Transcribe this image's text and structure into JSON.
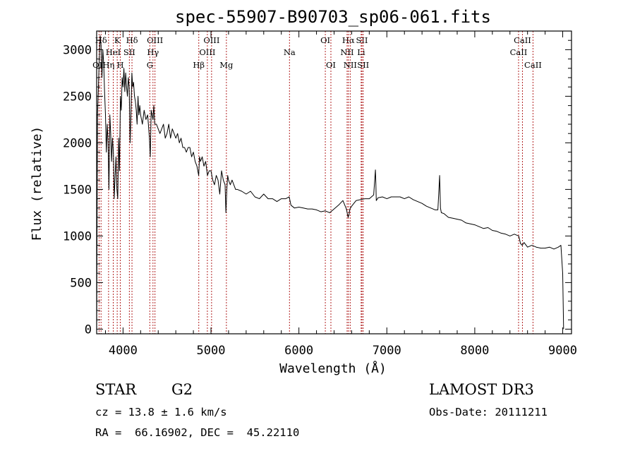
{
  "chart_data": {
    "type": "line",
    "title": "spec-55907-B90703_sp06-061.fits",
    "xlabel": "Wavelength (Å)",
    "ylabel": "Flux (relative)",
    "xlim": [
      3700,
      9100
    ],
    "ylim": [
      -50,
      3200
    ],
    "xticks": [
      4000,
      5000,
      6000,
      7000,
      8000,
      9000
    ],
    "yticks": [
      0,
      500,
      1000,
      1500,
      2000,
      2500,
      3000
    ],
    "grid": false,
    "series": [
      {
        "name": "spectrum",
        "x": [
          3700,
          3710,
          3720,
          3730,
          3740,
          3750,
          3760,
          3770,
          3780,
          3790,
          3800,
          3810,
          3820,
          3830,
          3840,
          3850,
          3860,
          3870,
          3880,
          3890,
          3900,
          3910,
          3920,
          3930,
          3940,
          3950,
          3960,
          3970,
          3980,
          3990,
          4000,
          4010,
          4020,
          4030,
          4040,
          4050,
          4060,
          4070,
          4080,
          4090,
          4100,
          4110,
          4120,
          4130,
          4140,
          4150,
          4160,
          4170,
          4180,
          4190,
          4200,
          4220,
          4240,
          4260,
          4280,
          4300,
          4310,
          4320,
          4340,
          4350,
          4360,
          4380,
          4400,
          4420,
          4440,
          4460,
          4480,
          4500,
          4520,
          4540,
          4560,
          4580,
          4600,
          4620,
          4640,
          4660,
          4680,
          4700,
          4720,
          4740,
          4760,
          4780,
          4800,
          4820,
          4840,
          4860,
          4870,
          4880,
          4900,
          4920,
          4940,
          4960,
          4980,
          5000,
          5020,
          5040,
          5060,
          5080,
          5100,
          5120,
          5140,
          5160,
          5170,
          5180,
          5190,
          5200,
          5220,
          5240,
          5260,
          5280,
          5300,
          5350,
          5400,
          5450,
          5500,
          5550,
          5600,
          5650,
          5700,
          5750,
          5800,
          5850,
          5890,
          5910,
          5950,
          6000,
          6050,
          6100,
          6150,
          6200,
          6250,
          6300,
          6350,
          6400,
          6450,
          6500,
          6540,
          6560,
          6570,
          6580,
          6600,
          6650,
          6700,
          6750,
          6800,
          6850,
          6870,
          6875,
          6880,
          6900,
          6950,
          7000,
          7050,
          7100,
          7150,
          7200,
          7250,
          7300,
          7350,
          7400,
          7450,
          7500,
          7550,
          7580,
          7590,
          7600,
          7610,
          7620,
          7650,
          7700,
          7750,
          7800,
          7850,
          7900,
          7950,
          8000,
          8050,
          8100,
          8150,
          8200,
          8250,
          8300,
          8350,
          8400,
          8450,
          8500,
          8520,
          8540,
          8560,
          8600,
          8650,
          8700,
          8750,
          8800,
          8850,
          8900,
          8950,
          8980,
          9000,
          9010
        ],
        "values": [
          0,
          2300,
          2600,
          2900,
          3150,
          3050,
          2700,
          3000,
          2850,
          2550,
          2300,
          1900,
          2200,
          2000,
          1500,
          2300,
          2100,
          1800,
          2050,
          1900,
          1400,
          1650,
          1850,
          1500,
          1400,
          2050,
          1700,
          2500,
          2350,
          2700,
          2600,
          2800,
          2550,
          2750,
          2600,
          2500,
          2700,
          2600,
          2000,
          2300,
          2750,
          2600,
          2650,
          2500,
          2450,
          2350,
          2200,
          2500,
          2300,
          2400,
          2300,
          2200,
          2350,
          2250,
          2300,
          2050,
          1850,
          2350,
          2250,
          2400,
          2200,
          2200,
          2150,
          2100,
          2150,
          2200,
          2050,
          2100,
          2200,
          2050,
          2150,
          2100,
          2050,
          2100,
          2000,
          2050,
          1950,
          1950,
          1900,
          1950,
          1950,
          1850,
          1900,
          1800,
          1750,
          1650,
          1850,
          1800,
          1850,
          1750,
          1800,
          1650,
          1700,
          1700,
          1600,
          1550,
          1650,
          1600,
          1450,
          1700,
          1600,
          1550,
          1250,
          1500,
          1650,
          1600,
          1550,
          1600,
          1550,
          1500,
          1500,
          1480,
          1450,
          1480,
          1420,
          1400,
          1450,
          1400,
          1400,
          1370,
          1400,
          1400,
          1420,
          1330,
          1300,
          1310,
          1300,
          1290,
          1290,
          1280,
          1260,
          1270,
          1250,
          1290,
          1330,
          1380,
          1290,
          1200,
          1230,
          1290,
          1320,
          1380,
          1390,
          1400,
          1400,
          1440,
          1710,
          1570,
          1380,
          1410,
          1420,
          1400,
          1420,
          1420,
          1420,
          1400,
          1420,
          1390,
          1370,
          1350,
          1320,
          1300,
          1280,
          1280,
          1450,
          1650,
          1300,
          1250,
          1240,
          1200,
          1190,
          1180,
          1170,
          1140,
          1130,
          1120,
          1100,
          1080,
          1090,
          1060,
          1050,
          1030,
          1020,
          1000,
          1020,
          1000,
          920,
          900,
          930,
          880,
          900,
          880,
          870,
          870,
          880,
          860,
          880,
          900,
          600,
          0
        ]
      }
    ],
    "line_markers": [
      {
        "label": "Hδ",
        "x": 4101.7,
        "row": 0
      },
      {
        "label": "K",
        "x": 3933.7,
        "row": 0
      },
      {
        "label": "Hδ",
        "x": 3750.0,
        "row": 0
      },
      {
        "label": "OIII",
        "x": 4363.2,
        "row": 0
      },
      {
        "label": "OIII",
        "x": 5006.8,
        "row": 0
      },
      {
        "label": "OI",
        "x": 6300.3,
        "row": 0
      },
      {
        "label": "Hα",
        "x": 6562.8,
        "row": 0
      },
      {
        "label": "SII",
        "x": 6716.4,
        "row": 0
      },
      {
        "label": "CaII",
        "x": 8542.1,
        "row": 0
      },
      {
        "label": "HeI",
        "x": 3888.6,
        "row": 1
      },
      {
        "label": "SII",
        "x": 4072.0,
        "row": 1
      },
      {
        "label": "Hγ",
        "x": 4340.5,
        "row": 1
      },
      {
        "label": "OIII",
        "x": 4958.9,
        "row": 1
      },
      {
        "label": "Na",
        "x": 5892.9,
        "row": 1
      },
      {
        "label": "NII",
        "x": 6548.1,
        "row": 1
      },
      {
        "label": "Li",
        "x": 6707.8,
        "row": 1
      },
      {
        "label": "CaII",
        "x": 8498.0,
        "row": 1
      },
      {
        "label": "OII",
        "x": 3727.3,
        "row": 2
      },
      {
        "label": "Hη",
        "x": 3835.4,
        "row": 2
      },
      {
        "label": "H",
        "x": 3968.5,
        "row": 2
      },
      {
        "label": "G",
        "x": 4304.4,
        "row": 2
      },
      {
        "label": "Hβ",
        "x": 4861.3,
        "row": 2
      },
      {
        "label": "Mg",
        "x": 5175.3,
        "row": 2
      },
      {
        "label": "OI",
        "x": 6363.8,
        "row": 2
      },
      {
        "label": "NII",
        "x": 6583.5,
        "row": 2
      },
      {
        "label": "SII",
        "x": 6730.8,
        "row": 2
      },
      {
        "label": "CaII",
        "x": 8662.1,
        "row": 2
      }
    ],
    "line_color": "#b22222"
  },
  "info": {
    "class_label": "STAR",
    "subclass": "G2",
    "survey": "LAMOST DR3",
    "cz_line": "cz = 13.8 ± 1.6 km/s",
    "obs_date_line": "Obs-Date: 20111211",
    "radec_line": "RA =  66.16902, DEC =  45.22110"
  }
}
